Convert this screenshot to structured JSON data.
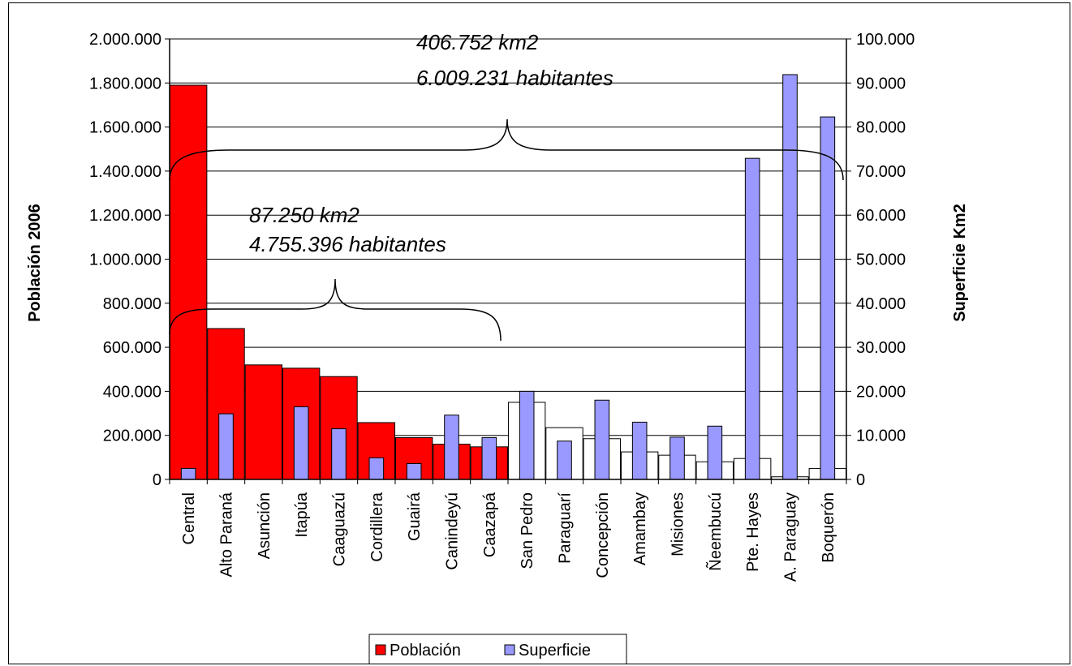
{
  "chart_data": {
    "type": "bar",
    "categories": [
      "Central",
      "Alto Paraná",
      "Asunción",
      "Itapúa",
      "Caaguazú",
      "Cordillera",
      "Guairá",
      "Canindeyú",
      "Caazapá",
      "San Pedro",
      "Paraguarí",
      "Concepción",
      "Amambay",
      "Misiones",
      "Ñeembucú",
      "Pte. Hayes",
      "A. Paraguay",
      "Boquerón"
    ],
    "series": [
      {
        "name": "Población",
        "axis": "left",
        "color": "#ff0000",
        "values": [
          1790000,
          685000,
          520000,
          505000,
          467000,
          258000,
          190000,
          160000,
          148000,
          350000,
          235000,
          185000,
          125000,
          110000,
          80000,
          95000,
          12000,
          50000
        ]
      },
      {
        "name": "Superficie",
        "axis": "right",
        "color": "#9999ff",
        "values": [
          2500,
          14900,
          0,
          16500,
          11500,
          4900,
          3600,
          14600,
          9500,
          20000,
          8700,
          18000,
          13000,
          9600,
          12100,
          72900,
          91900,
          82300
        ]
      }
    ],
    "ylabel": "Población 2006",
    "y2label": "Superficie Km2",
    "ylim": [
      0,
      2000000
    ],
    "y2lim": [
      0,
      100000
    ],
    "yticks": [
      "0",
      "200.000",
      "400.000",
      "600.000",
      "800.000",
      "1.000.000",
      "1.200.000",
      "1.400.000",
      "1.600.000",
      "1.800.000",
      "2.000.000"
    ],
    "y2ticks": [
      "0",
      "10.000",
      "20.000",
      "30.000",
      "40.000",
      "50.000",
      "60.000",
      "70.000",
      "80.000",
      "90.000",
      "100.000"
    ],
    "grid": true,
    "legend": "bottom",
    "annotations": [
      {
        "line1": "406.752 km2",
        "line2": "6.009.231 habitantes"
      },
      {
        "line1": "87.250 km2",
        "line2": "4.755.396 habitantes"
      }
    ]
  }
}
